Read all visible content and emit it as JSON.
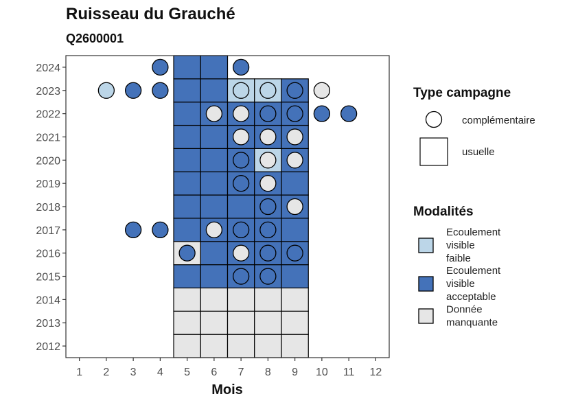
{
  "chart_data": {
    "type": "heatmap",
    "title": "Ruisseau du Grauché",
    "subtitle": "Q2600001",
    "xlabel": "Mois",
    "ylabel": "",
    "x_ticks": [
      "1",
      "2",
      "3",
      "4",
      "5",
      "6",
      "7",
      "8",
      "9",
      "10",
      "11",
      "12"
    ],
    "y_ticks": [
      "2012",
      "2013",
      "2014",
      "2015",
      "2016",
      "2017",
      "2018",
      "2019",
      "2020",
      "2021",
      "2022",
      "2023",
      "2024"
    ],
    "xlim": [
      0.5,
      12.5
    ],
    "ylim": [
      2011.5,
      2024.5
    ],
    "grid": false,
    "legends": {
      "type": {
        "title": "Type campagne",
        "items": [
          {
            "key": "complementaire",
            "label": "complémentaire",
            "shape": "circle"
          },
          {
            "key": "usuelle",
            "label": "usuelle",
            "shape": "square"
          }
        ]
      },
      "modalites": {
        "title": "Modalités",
        "items": [
          {
            "key": "faible",
            "label_lines": [
              "Ecoulement",
              "visible",
              "faible"
            ],
            "color": "#bcd6e8"
          },
          {
            "key": "acceptable",
            "label_lines": [
              "Ecoulement",
              "visible",
              "acceptable"
            ],
            "color": "#4472b9"
          },
          {
            "key": "manquante",
            "label_lines": [
              "Donnée",
              "manquante"
            ],
            "color": "#e6e6e6"
          }
        ]
      }
    },
    "colors": {
      "faible": "#bcd6e8",
      "acceptable": "#4472b9",
      "manquante": "#e6e6e6"
    },
    "usuelle": [
      {
        "month": 5,
        "year": 2012,
        "m": "manquante"
      },
      {
        "month": 6,
        "year": 2012,
        "m": "manquante"
      },
      {
        "month": 7,
        "year": 2012,
        "m": "manquante"
      },
      {
        "month": 8,
        "year": 2012,
        "m": "manquante"
      },
      {
        "month": 9,
        "year": 2012,
        "m": "manquante"
      },
      {
        "month": 5,
        "year": 2013,
        "m": "manquante"
      },
      {
        "month": 6,
        "year": 2013,
        "m": "manquante"
      },
      {
        "month": 7,
        "year": 2013,
        "m": "manquante"
      },
      {
        "month": 8,
        "year": 2013,
        "m": "manquante"
      },
      {
        "month": 9,
        "year": 2013,
        "m": "manquante"
      },
      {
        "month": 5,
        "year": 2014,
        "m": "manquante"
      },
      {
        "month": 6,
        "year": 2014,
        "m": "manquante"
      },
      {
        "month": 7,
        "year": 2014,
        "m": "manquante"
      },
      {
        "month": 8,
        "year": 2014,
        "m": "manquante"
      },
      {
        "month": 9,
        "year": 2014,
        "m": "manquante"
      },
      {
        "month": 5,
        "year": 2015,
        "m": "acceptable"
      },
      {
        "month": 6,
        "year": 2015,
        "m": "acceptable"
      },
      {
        "month": 7,
        "year": 2015,
        "m": "acceptable"
      },
      {
        "month": 8,
        "year": 2015,
        "m": "acceptable"
      },
      {
        "month": 9,
        "year": 2015,
        "m": "acceptable"
      },
      {
        "month": 5,
        "year": 2016,
        "m": "manquante"
      },
      {
        "month": 6,
        "year": 2016,
        "m": "acceptable"
      },
      {
        "month": 7,
        "year": 2016,
        "m": "acceptable"
      },
      {
        "month": 8,
        "year": 2016,
        "m": "acceptable"
      },
      {
        "month": 9,
        "year": 2016,
        "m": "acceptable"
      },
      {
        "month": 5,
        "year": 2017,
        "m": "acceptable"
      },
      {
        "month": 6,
        "year": 2017,
        "m": "acceptable"
      },
      {
        "month": 7,
        "year": 2017,
        "m": "acceptable"
      },
      {
        "month": 8,
        "year": 2017,
        "m": "acceptable"
      },
      {
        "month": 9,
        "year": 2017,
        "m": "acceptable"
      },
      {
        "month": 5,
        "year": 2018,
        "m": "acceptable"
      },
      {
        "month": 6,
        "year": 2018,
        "m": "acceptable"
      },
      {
        "month": 7,
        "year": 2018,
        "m": "acceptable"
      },
      {
        "month": 8,
        "year": 2018,
        "m": "acceptable"
      },
      {
        "month": 9,
        "year": 2018,
        "m": "acceptable"
      },
      {
        "month": 5,
        "year": 2019,
        "m": "acceptable"
      },
      {
        "month": 6,
        "year": 2019,
        "m": "acceptable"
      },
      {
        "month": 7,
        "year": 2019,
        "m": "acceptable"
      },
      {
        "month": 8,
        "year": 2019,
        "m": "acceptable"
      },
      {
        "month": 9,
        "year": 2019,
        "m": "acceptable"
      },
      {
        "month": 5,
        "year": 2020,
        "m": "acceptable"
      },
      {
        "month": 6,
        "year": 2020,
        "m": "acceptable"
      },
      {
        "month": 7,
        "year": 2020,
        "m": "acceptable"
      },
      {
        "month": 8,
        "year": 2020,
        "m": "faible"
      },
      {
        "month": 9,
        "year": 2020,
        "m": "acceptable"
      },
      {
        "month": 5,
        "year": 2021,
        "m": "acceptable"
      },
      {
        "month": 6,
        "year": 2021,
        "m": "acceptable"
      },
      {
        "month": 7,
        "year": 2021,
        "m": "acceptable"
      },
      {
        "month": 8,
        "year": 2021,
        "m": "acceptable"
      },
      {
        "month": 9,
        "year": 2021,
        "m": "acceptable"
      },
      {
        "month": 5,
        "year": 2022,
        "m": "acceptable"
      },
      {
        "month": 6,
        "year": 2022,
        "m": "acceptable"
      },
      {
        "month": 7,
        "year": 2022,
        "m": "acceptable"
      },
      {
        "month": 8,
        "year": 2022,
        "m": "acceptable"
      },
      {
        "month": 9,
        "year": 2022,
        "m": "acceptable"
      },
      {
        "month": 5,
        "year": 2023,
        "m": "acceptable"
      },
      {
        "month": 6,
        "year": 2023,
        "m": "acceptable"
      },
      {
        "month": 7,
        "year": 2023,
        "m": "faible"
      },
      {
        "month": 8,
        "year": 2023,
        "m": "faible"
      },
      {
        "month": 9,
        "year": 2023,
        "m": "acceptable"
      },
      {
        "month": 5,
        "year": 2024,
        "m": "acceptable"
      },
      {
        "month": 6,
        "year": 2024,
        "m": "acceptable"
      }
    ],
    "complementaire": [
      {
        "month": 4,
        "year": 2024,
        "m": "acceptable"
      },
      {
        "month": 7,
        "year": 2024,
        "m": "acceptable"
      },
      {
        "month": 2,
        "year": 2023,
        "m": "faible"
      },
      {
        "month": 3,
        "year": 2023,
        "m": "acceptable"
      },
      {
        "month": 4,
        "year": 2023,
        "m": "acceptable"
      },
      {
        "month": 7,
        "year": 2023,
        "m": "faible"
      },
      {
        "month": 8,
        "year": 2023,
        "m": "faible"
      },
      {
        "month": 9,
        "year": 2023,
        "m": "acceptable"
      },
      {
        "month": 10,
        "year": 2023,
        "m": "manquante"
      },
      {
        "month": 6,
        "year": 2022,
        "m": "manquante"
      },
      {
        "month": 7,
        "year": 2022,
        "m": "manquante"
      },
      {
        "month": 8,
        "year": 2022,
        "m": "acceptable"
      },
      {
        "month": 9,
        "year": 2022,
        "m": "acceptable"
      },
      {
        "month": 10,
        "year": 2022,
        "m": "acceptable"
      },
      {
        "month": 11,
        "year": 2022,
        "m": "acceptable"
      },
      {
        "month": 7,
        "year": 2021,
        "m": "manquante"
      },
      {
        "month": 8,
        "year": 2021,
        "m": "manquante"
      },
      {
        "month": 9,
        "year": 2021,
        "m": "manquante"
      },
      {
        "month": 7,
        "year": 2020,
        "m": "acceptable"
      },
      {
        "month": 8,
        "year": 2020,
        "m": "manquante"
      },
      {
        "month": 9,
        "year": 2020,
        "m": "manquante"
      },
      {
        "month": 7,
        "year": 2019,
        "m": "acceptable"
      },
      {
        "month": 8,
        "year": 2019,
        "m": "manquante"
      },
      {
        "month": 8,
        "year": 2018,
        "m": "acceptable"
      },
      {
        "month": 9,
        "year": 2018,
        "m": "manquante"
      },
      {
        "month": 3,
        "year": 2017,
        "m": "acceptable"
      },
      {
        "month": 4,
        "year": 2017,
        "m": "acceptable"
      },
      {
        "month": 6,
        "year": 2017,
        "m": "manquante"
      },
      {
        "month": 7,
        "year": 2017,
        "m": "acceptable"
      },
      {
        "month": 8,
        "year": 2017,
        "m": "acceptable"
      },
      {
        "month": 5,
        "year": 2016,
        "m": "acceptable"
      },
      {
        "month": 7,
        "year": 2016,
        "m": "manquante"
      },
      {
        "month": 8,
        "year": 2016,
        "m": "acceptable"
      },
      {
        "month": 9,
        "year": 2016,
        "m": "acceptable"
      },
      {
        "month": 7,
        "year": 2015,
        "m": "acceptable"
      },
      {
        "month": 8,
        "year": 2015,
        "m": "acceptable"
      }
    ]
  }
}
